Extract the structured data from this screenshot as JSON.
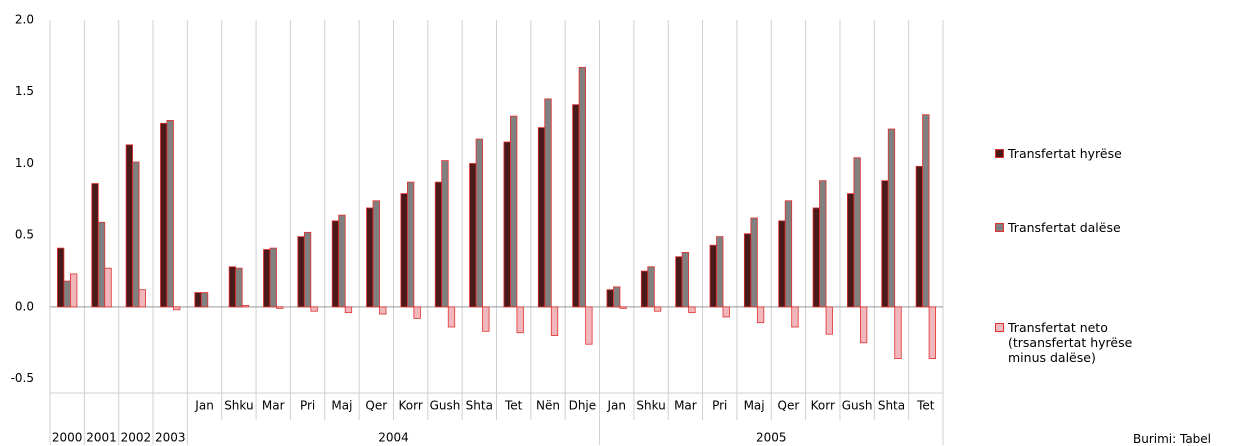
{
  "chart_data": {
    "type": "bar",
    "categories": [
      null,
      null,
      null,
      null,
      "Jan",
      "Shku",
      "Mar",
      "Pri",
      "Maj",
      "Qer",
      "Korr",
      "Gush",
      "Shta",
      "Tet",
      "Nën",
      "Dhje",
      "Jan",
      "Shku",
      "Mar",
      "Pri",
      "Maj",
      "Qer",
      "Korr",
      "Gush",
      "Shta",
      "Tet"
    ],
    "category_groups": [
      {
        "label": "2000",
        "size": 1
      },
      {
        "label": "2001",
        "size": 1
      },
      {
        "label": "2002",
        "size": 1
      },
      {
        "label": "2003",
        "size": 1
      },
      {
        "label": "2004",
        "size": 12
      },
      {
        "label": "2005",
        "size": 10
      }
    ],
    "series": [
      {
        "name": "Transfertat hyrëse",
        "color": "#4a1a1a",
        "values": [
          0.41,
          0.86,
          1.13,
          1.28,
          0.1,
          0.28,
          0.4,
          0.49,
          0.6,
          0.69,
          0.79,
          0.87,
          1.0,
          1.15,
          1.25,
          1.41,
          0.12,
          0.25,
          0.35,
          0.43,
          0.51,
          0.6,
          0.69,
          0.79,
          0.88,
          0.98
        ]
      },
      {
        "name": "Transfertat dalëse",
        "color": "#808080",
        "values": [
          0.18,
          0.59,
          1.01,
          1.3,
          0.1,
          0.27,
          0.41,
          0.52,
          0.64,
          0.74,
          0.87,
          1.02,
          1.17,
          1.33,
          1.45,
          1.67,
          0.14,
          0.28,
          0.38,
          0.49,
          0.62,
          0.74,
          0.88,
          1.04,
          1.24,
          1.34
        ]
      },
      {
        "name": "Transfertat neto (trsansfertat hyrëse minus dalëse)",
        "color": "#f0b8bc",
        "values": [
          0.23,
          0.27,
          0.12,
          -0.02,
          0.0,
          0.01,
          -0.01,
          -0.03,
          -0.04,
          -0.05,
          -0.08,
          -0.14,
          -0.17,
          -0.18,
          -0.2,
          -0.26,
          -0.01,
          -0.03,
          -0.04,
          -0.07,
          -0.11,
          -0.14,
          -0.19,
          -0.25,
          -0.36,
          -0.36
        ]
      }
    ],
    "ylim": [
      -0.6,
      2.0
    ],
    "yticks": [
      {
        "value": -0.5,
        "label": "-0.5"
      },
      {
        "value": 0,
        "label": "0.0"
      },
      0.5,
      {
        "value": 1,
        "label": "1.0"
      },
      1.5,
      {
        "value": 2,
        "label": "2.0"
      }
    ],
    "source": "Burimi: Tabel"
  }
}
